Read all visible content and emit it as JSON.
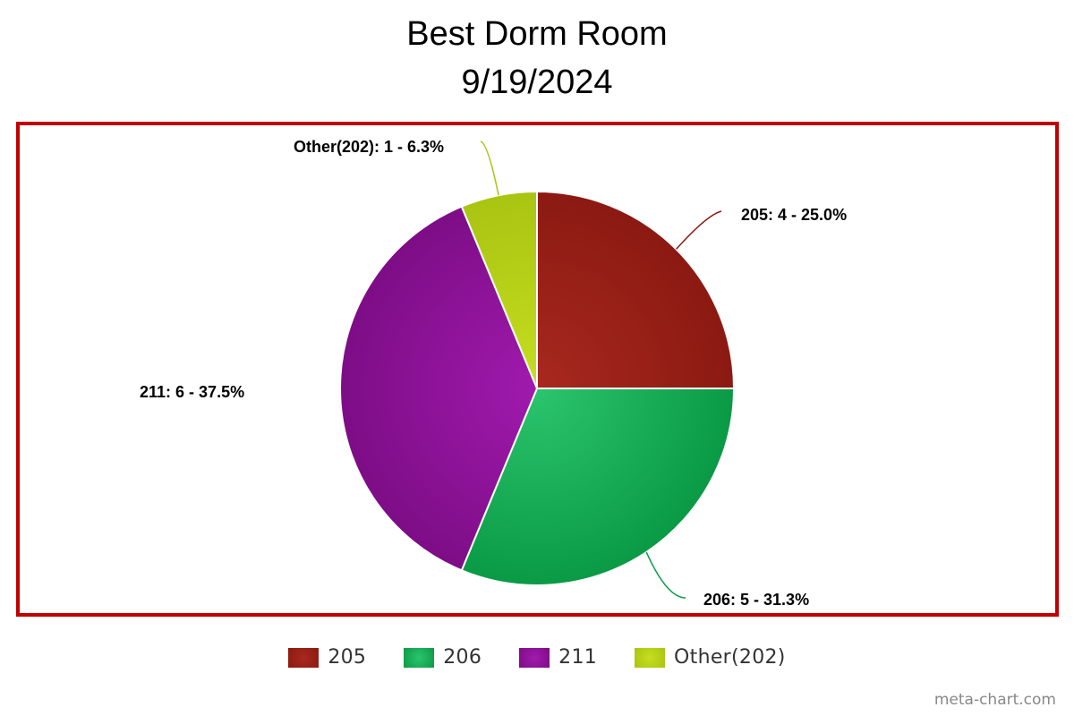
{
  "chart_data": {
    "type": "pie",
    "title": "Best Dorm Room",
    "subtitle": "9/19/2024",
    "legend_position": "bottom",
    "slices": [
      {
        "label": "205",
        "value": 4,
        "percent": "25.0%",
        "color": "#8b1a12",
        "highlight": "#a8281e"
      },
      {
        "label": "206",
        "value": 5,
        "percent": "31.3%",
        "color": "#0a9a45",
        "highlight": "#2cc46e"
      },
      {
        "label": "211",
        "value": 6,
        "percent": "37.5%",
        "color": "#7d0d86",
        "highlight": "#a01aad"
      },
      {
        "label": "Other(202)",
        "value": 1,
        "percent": "6.3%",
        "color": "#a9c412",
        "highlight": "#c6de20"
      }
    ],
    "data_labels": [
      "205: 4 - 25.0%",
      "206: 5 - 31.3%",
      "211: 6 - 37.5%",
      "Other(202): 1 - 6.3%"
    ]
  },
  "frame_color": "#c00000",
  "watermark": "meta-chart.com"
}
